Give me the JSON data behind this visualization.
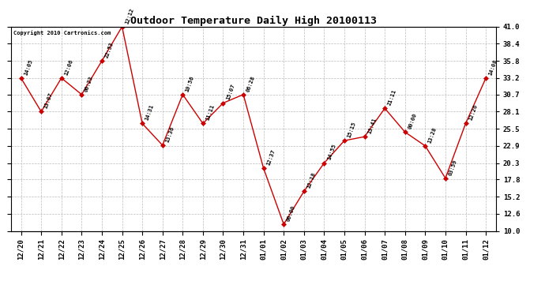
{
  "title": "Outdoor Temperature Daily High 20100113",
  "copyright": "Copyright 2010 Cartronics.com",
  "x_labels": [
    "12/20",
    "12/21",
    "12/22",
    "12/23",
    "12/24",
    "12/25",
    "12/26",
    "12/27",
    "12/28",
    "12/29",
    "12/30",
    "12/31",
    "01/01",
    "01/02",
    "01/03",
    "01/04",
    "01/05",
    "01/06",
    "01/07",
    "01/08",
    "01/09",
    "01/10",
    "01/11",
    "01/12"
  ],
  "y_values": [
    33.2,
    28.1,
    33.2,
    30.7,
    35.8,
    41.0,
    26.3,
    23.0,
    30.7,
    26.3,
    29.4,
    30.7,
    19.5,
    11.0,
    16.0,
    20.3,
    23.7,
    24.3,
    28.6,
    25.0,
    22.9,
    18.0,
    26.3,
    33.2
  ],
  "point_labels": [
    "14:05",
    "13:07",
    "12:06",
    "00:23",
    "22:53",
    "12:12",
    "14:31",
    "13:36",
    "10:56",
    "11:11",
    "15:07",
    "06:28",
    "12:37",
    "00:00",
    "12:18",
    "14:55",
    "15:15",
    "13:41",
    "21:11",
    "00:00",
    "13:28",
    "03:59",
    "12:26",
    "14:08"
  ],
  "line_color": "#cc0000",
  "marker_color": "#cc0000",
  "bg_color": "#ffffff",
  "grid_color": "#bbbbbb",
  "ylim_min": 10.0,
  "ylim_max": 41.0,
  "yticks": [
    10.0,
    12.6,
    15.2,
    17.8,
    20.3,
    22.9,
    25.5,
    28.1,
    30.7,
    33.2,
    35.8,
    38.4,
    41.0
  ]
}
